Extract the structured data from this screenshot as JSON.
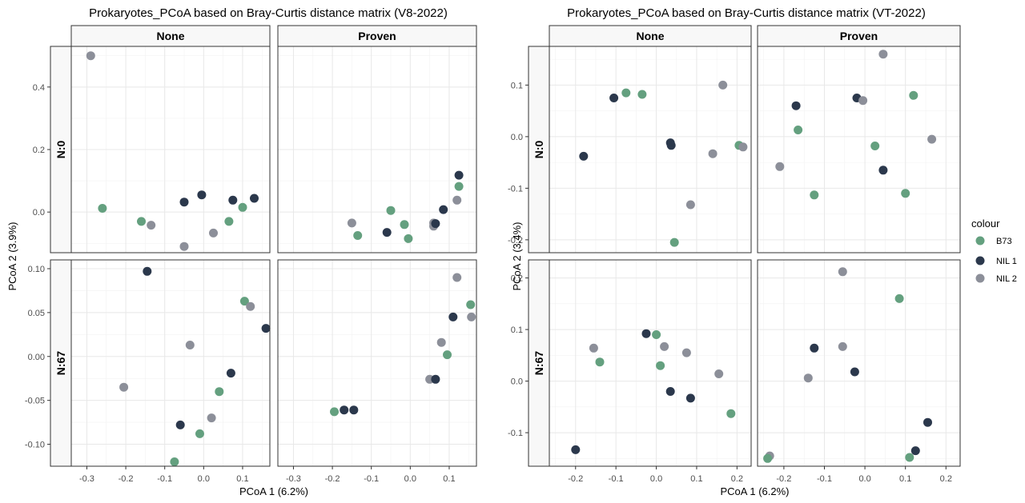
{
  "colors": {
    "B73": "#64a07f",
    "NIL 1": "#2b384c",
    "NIL 2": "#8c8f99"
  },
  "legend": {
    "title": "colour",
    "items": [
      "B73",
      "NIL 1",
      "NIL 2"
    ]
  },
  "chart_data": [
    {
      "type": "scatter",
      "title": "Prokaryotes_PCoA based on Bray-Curtis distance matrix (V8-2022)",
      "xlabel": "PCoA 1 (6.2%)",
      "ylabel": "PCoA 2 (3.9%)",
      "facet_cols": [
        "None",
        "Proven"
      ],
      "facet_rows": [
        "N:0",
        "N:67"
      ],
      "xlim": [
        -0.34,
        0.17
      ],
      "xticks": [
        -0.3,
        -0.2,
        -0.1,
        0.0,
        0.1
      ],
      "xtick_labels": [
        "-0.3",
        "-0.2",
        "-0.1",
        "0.0",
        "0.1"
      ],
      "rows": [
        {
          "ylim": [
            -0.13,
            0.53
          ],
          "yticks": [
            0.0,
            0.2,
            0.4
          ],
          "ytick_labels": [
            "0.0",
            "0.2",
            "0.4"
          ],
          "panels": [
            {
              "points": [
                {
                  "x": -0.29,
                  "y": 0.5,
                  "group": "NIL 2"
                },
                {
                  "x": -0.26,
                  "y": 0.012,
                  "group": "B73"
                },
                {
                  "x": -0.16,
                  "y": -0.03,
                  "group": "B73"
                },
                {
                  "x": -0.135,
                  "y": -0.042,
                  "group": "NIL 2"
                },
                {
                  "x": -0.05,
                  "y": 0.032,
                  "group": "NIL 1"
                },
                {
                  "x": -0.05,
                  "y": -0.11,
                  "group": "NIL 2"
                },
                {
                  "x": -0.005,
                  "y": 0.055,
                  "group": "NIL 1"
                },
                {
                  "x": 0.025,
                  "y": -0.067,
                  "group": "NIL 2"
                },
                {
                  "x": 0.065,
                  "y": -0.03,
                  "group": "B73"
                },
                {
                  "x": 0.075,
                  "y": 0.038,
                  "group": "NIL 1"
                },
                {
                  "x": 0.1,
                  "y": 0.015,
                  "group": "B73"
                },
                {
                  "x": 0.13,
                  "y": 0.044,
                  "group": "NIL 1"
                }
              ]
            },
            {
              "points": [
                {
                  "x": -0.15,
                  "y": -0.035,
                  "group": "NIL 2"
                },
                {
                  "x": -0.135,
                  "y": -0.075,
                  "group": "B73"
                },
                {
                  "x": -0.06,
                  "y": -0.065,
                  "group": "NIL 1"
                },
                {
                  "x": -0.05,
                  "y": 0.005,
                  "group": "B73"
                },
                {
                  "x": -0.015,
                  "y": -0.04,
                  "group": "B73"
                },
                {
                  "x": -0.005,
                  "y": -0.085,
                  "group": "B73"
                },
                {
                  "x": 0.06,
                  "y": -0.035,
                  "group": "NIL 2"
                },
                {
                  "x": 0.06,
                  "y": -0.045,
                  "group": "NIL 2"
                },
                {
                  "x": 0.065,
                  "y": -0.037,
                  "group": "NIL 1"
                },
                {
                  "x": 0.085,
                  "y": 0.008,
                  "group": "NIL 1"
                },
                {
                  "x": 0.12,
                  "y": 0.038,
                  "group": "NIL 2"
                },
                {
                  "x": 0.125,
                  "y": 0.082,
                  "group": "B73"
                },
                {
                  "x": 0.125,
                  "y": 0.118,
                  "group": "NIL 1"
                }
              ]
            }
          ]
        },
        {
          "ylim": [
            -0.125,
            0.11
          ],
          "yticks": [
            -0.1,
            -0.05,
            0.0,
            0.05,
            0.1
          ],
          "ytick_labels": [
            "-0.10",
            "-0.05",
            "0.00",
            "0.05",
            "0.10"
          ],
          "panels": [
            {
              "points": [
                {
                  "x": -0.145,
                  "y": 0.097,
                  "group": "NIL 1"
                },
                {
                  "x": -0.205,
                  "y": -0.035,
                  "group": "NIL 2"
                },
                {
                  "x": -0.035,
                  "y": 0.013,
                  "group": "NIL 2"
                },
                {
                  "x": -0.06,
                  "y": -0.078,
                  "group": "NIL 1"
                },
                {
                  "x": -0.075,
                  "y": -0.12,
                  "group": "B73"
                },
                {
                  "x": -0.01,
                  "y": -0.088,
                  "group": "B73"
                },
                {
                  "x": 0.02,
                  "y": -0.07,
                  "group": "NIL 2"
                },
                {
                  "x": 0.04,
                  "y": -0.04,
                  "group": "B73"
                },
                {
                  "x": 0.07,
                  "y": -0.019,
                  "group": "NIL 1"
                },
                {
                  "x": 0.105,
                  "y": 0.063,
                  "group": "B73"
                },
                {
                  "x": 0.12,
                  "y": 0.057,
                  "group": "NIL 2"
                },
                {
                  "x": 0.16,
                  "y": 0.032,
                  "group": "NIL 1"
                }
              ]
            },
            {
              "points": [
                {
                  "x": -0.195,
                  "y": -0.063,
                  "group": "B73"
                },
                {
                  "x": -0.17,
                  "y": -0.061,
                  "group": "NIL 1"
                },
                {
                  "x": -0.145,
                  "y": -0.061,
                  "group": "NIL 1"
                },
                {
                  "x": 0.05,
                  "y": -0.026,
                  "group": "NIL 2"
                },
                {
                  "x": 0.065,
                  "y": -0.026,
                  "group": "NIL 1"
                },
                {
                  "x": 0.08,
                  "y": 0.016,
                  "group": "NIL 2"
                },
                {
                  "x": 0.095,
                  "y": 0.002,
                  "group": "B73"
                },
                {
                  "x": 0.11,
                  "y": 0.045,
                  "group": "NIL 1"
                },
                {
                  "x": 0.12,
                  "y": 0.09,
                  "group": "NIL 2"
                },
                {
                  "x": 0.155,
                  "y": 0.059,
                  "group": "B73"
                },
                {
                  "x": 0.157,
                  "y": 0.045,
                  "group": "NIL 2"
                }
              ]
            }
          ]
        }
      ]
    },
    {
      "type": "scatter",
      "title": "Prokaryotes_PCoA based on Bray-Curtis distance matrix (VT-2022)",
      "xlabel": "PCoA 1 (6.2%)",
      "ylabel": "PCoA 2 (3.4%)",
      "facet_cols": [
        "None",
        "Proven"
      ],
      "facet_rows": [
        "N:0",
        "N:67"
      ],
      "xlim": [
        -0.265,
        0.235
      ],
      "xticks": [
        -0.2,
        -0.1,
        0.0,
        0.1,
        0.2
      ],
      "xtick_labels": [
        "-0.2",
        "-0.1",
        "0.0",
        "0.1",
        "0.2"
      ],
      "rows": [
        {
          "ylim": [
            -0.225,
            0.175
          ],
          "yticks": [
            -0.2,
            -0.1,
            0.0,
            0.1
          ],
          "ytick_labels": [
            "-0.2",
            "-0.1",
            "0.0",
            "0.1"
          ],
          "panels": [
            {
              "points": [
                {
                  "x": -0.18,
                  "y": -0.038,
                  "group": "NIL 1"
                },
                {
                  "x": -0.105,
                  "y": 0.075,
                  "group": "NIL 1"
                },
                {
                  "x": -0.075,
                  "y": 0.085,
                  "group": "B73"
                },
                {
                  "x": -0.035,
                  "y": 0.082,
                  "group": "B73"
                },
                {
                  "x": 0.035,
                  "y": -0.012,
                  "group": "NIL 1"
                },
                {
                  "x": 0.037,
                  "y": -0.017,
                  "group": "NIL 1"
                },
                {
                  "x": 0.045,
                  "y": -0.205,
                  "group": "B73"
                },
                {
                  "x": 0.085,
                  "y": -0.132,
                  "group": "NIL 2"
                },
                {
                  "x": 0.14,
                  "y": -0.033,
                  "group": "NIL 2"
                },
                {
                  "x": 0.165,
                  "y": 0.1,
                  "group": "NIL 2"
                },
                {
                  "x": 0.205,
                  "y": -0.017,
                  "group": "B73"
                },
                {
                  "x": 0.215,
                  "y": -0.02,
                  "group": "NIL 2"
                }
              ]
            },
            {
              "points": [
                {
                  "x": -0.21,
                  "y": -0.058,
                  "group": "NIL 2"
                },
                {
                  "x": -0.17,
                  "y": 0.06,
                  "group": "NIL 1"
                },
                {
                  "x": -0.165,
                  "y": 0.013,
                  "group": "B73"
                },
                {
                  "x": -0.125,
                  "y": -0.113,
                  "group": "B73"
                },
                {
                  "x": -0.02,
                  "y": 0.075,
                  "group": "NIL 1"
                },
                {
                  "x": -0.005,
                  "y": 0.07,
                  "group": "NIL 2"
                },
                {
                  "x": 0.025,
                  "y": -0.018,
                  "group": "B73"
                },
                {
                  "x": 0.045,
                  "y": 0.16,
                  "group": "NIL 2"
                },
                {
                  "x": 0.045,
                  "y": -0.065,
                  "group": "NIL 1"
                },
                {
                  "x": 0.1,
                  "y": -0.11,
                  "group": "B73"
                },
                {
                  "x": 0.12,
                  "y": 0.08,
                  "group": "B73"
                },
                {
                  "x": 0.165,
                  "y": -0.005,
                  "group": "NIL 2"
                }
              ]
            }
          ]
        },
        {
          "ylim": [
            -0.165,
            0.235
          ],
          "yticks": [
            -0.1,
            0.0,
            0.1,
            0.2
          ],
          "ytick_labels": [
            "-0.1",
            "0.0",
            "0.1",
            "0.2"
          ],
          "panels": [
            {
              "points": [
                {
                  "x": -0.2,
                  "y": -0.133,
                  "group": "NIL 1"
                },
                {
                  "x": -0.155,
                  "y": 0.064,
                  "group": "NIL 2"
                },
                {
                  "x": -0.14,
                  "y": 0.037,
                  "group": "B73"
                },
                {
                  "x": -0.025,
                  "y": 0.092,
                  "group": "NIL 1"
                },
                {
                  "x": 0.0,
                  "y": 0.09,
                  "group": "B73"
                },
                {
                  "x": 0.01,
                  "y": 0.03,
                  "group": "B73"
                },
                {
                  "x": 0.02,
                  "y": 0.067,
                  "group": "NIL 2"
                },
                {
                  "x": 0.035,
                  "y": -0.02,
                  "group": "NIL 1"
                },
                {
                  "x": 0.075,
                  "y": 0.055,
                  "group": "NIL 2"
                },
                {
                  "x": 0.085,
                  "y": -0.033,
                  "group": "NIL 1"
                },
                {
                  "x": 0.155,
                  "y": 0.014,
                  "group": "NIL 2"
                },
                {
                  "x": 0.185,
                  "y": -0.063,
                  "group": "B73"
                }
              ]
            },
            {
              "points": [
                {
                  "x": -0.235,
                  "y": -0.145,
                  "group": "NIL 2"
                },
                {
                  "x": -0.24,
                  "y": -0.15,
                  "group": "B73"
                },
                {
                  "x": -0.14,
                  "y": 0.006,
                  "group": "NIL 2"
                },
                {
                  "x": -0.125,
                  "y": 0.064,
                  "group": "NIL 1"
                },
                {
                  "x": -0.055,
                  "y": 0.212,
                  "group": "NIL 2"
                },
                {
                  "x": -0.055,
                  "y": 0.067,
                  "group": "NIL 2"
                },
                {
                  "x": -0.025,
                  "y": 0.018,
                  "group": "NIL 1"
                },
                {
                  "x": 0.085,
                  "y": 0.16,
                  "group": "B73"
                },
                {
                  "x": 0.11,
                  "y": -0.148,
                  "group": "B73"
                },
                {
                  "x": 0.125,
                  "y": -0.135,
                  "group": "NIL 1"
                },
                {
                  "x": 0.155,
                  "y": -0.08,
                  "group": "NIL 1"
                }
              ]
            }
          ]
        }
      ]
    }
  ]
}
